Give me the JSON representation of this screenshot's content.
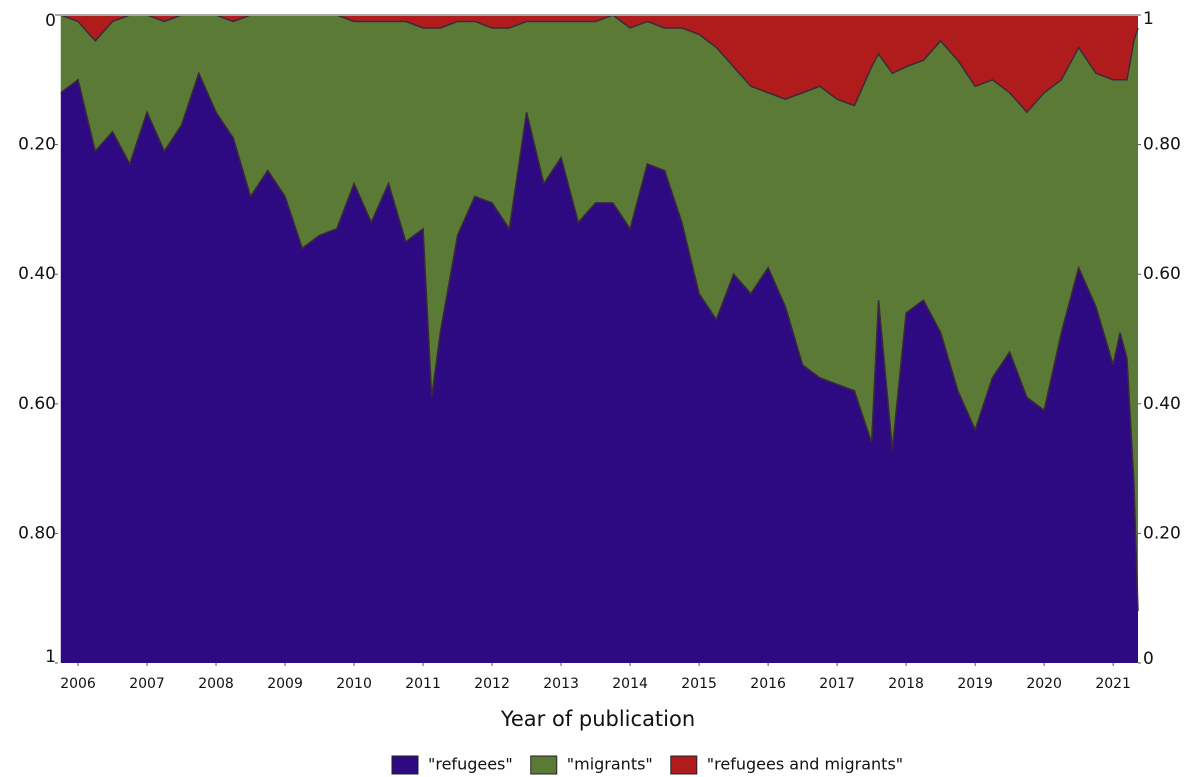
{
  "chart_data": {
    "type": "stacked_area",
    "x_label": "Year of publication",
    "x": [
      2005.75,
      2006.0,
      2006.25,
      2006.5,
      2006.75,
      2007.0,
      2007.25,
      2007.5,
      2007.75,
      2008.0,
      2008.25,
      2008.5,
      2008.75,
      2009.0,
      2009.25,
      2009.5,
      2009.75,
      2010.0,
      2010.25,
      2010.5,
      2010.75,
      2011.0,
      2011.125,
      2011.25,
      2011.5,
      2011.75,
      2012.0,
      2012.25,
      2012.5,
      2012.75,
      2013.0,
      2013.25,
      2013.5,
      2013.75,
      2014.0,
      2014.25,
      2014.5,
      2014.75,
      2015.0,
      2015.25,
      2015.5,
      2015.75,
      2016.0,
      2016.25,
      2016.5,
      2016.75,
      2017.0,
      2017.25,
      2017.5,
      2017.6,
      2017.8,
      2018.0,
      2018.25,
      2018.5,
      2018.75,
      2019.0,
      2019.25,
      2019.5,
      2019.75,
      2020.0,
      2020.25,
      2020.5,
      2020.75,
      2021.0,
      2021.1,
      2021.2,
      2021.3,
      2021.36
    ],
    "series": [
      {
        "name": "\"refugees\"",
        "color": "#2e0a82",
        "axis": "y2",
        "values": [
          0.88,
          0.9,
          0.79,
          0.82,
          0.77,
          0.85,
          0.79,
          0.83,
          0.91,
          0.85,
          0.81,
          0.72,
          0.76,
          0.72,
          0.64,
          0.66,
          0.67,
          0.74,
          0.68,
          0.74,
          0.65,
          0.67,
          0.41,
          0.51,
          0.66,
          0.72,
          0.71,
          0.67,
          0.85,
          0.74,
          0.78,
          0.68,
          0.71,
          0.71,
          0.67,
          0.77,
          0.76,
          0.68,
          0.57,
          0.53,
          0.6,
          0.57,
          0.61,
          0.55,
          0.46,
          0.44,
          0.43,
          0.42,
          0.34,
          0.56,
          0.33,
          0.54,
          0.56,
          0.51,
          0.42,
          0.36,
          0.44,
          0.48,
          0.41,
          0.39,
          0.51,
          0.61,
          0.55,
          0.46,
          0.51,
          0.47,
          0.28,
          0.08
        ]
      },
      {
        "name": "\"migrants\"",
        "color": "#5a7a35",
        "axis": "y2",
        "values": [
          0.12,
          0.09,
          0.17,
          0.17,
          0.23,
          0.15,
          0.2,
          0.17,
          0.09,
          0.15,
          0.18,
          0.28,
          0.24,
          0.28,
          0.36,
          0.34,
          0.33,
          0.25,
          0.31,
          0.25,
          0.34,
          0.31,
          0.57,
          0.47,
          0.33,
          0.27,
          0.27,
          0.31,
          0.14,
          0.25,
          0.21,
          0.31,
          0.28,
          0.29,
          0.31,
          0.22,
          0.22,
          0.3,
          0.4,
          0.42,
          0.32,
          0.32,
          0.27,
          0.32,
          0.42,
          0.45,
          0.44,
          0.44,
          0.58,
          0.38,
          0.58,
          0.38,
          0.37,
          0.45,
          0.51,
          0.53,
          0.46,
          0.4,
          0.44,
          0.49,
          0.39,
          0.34,
          0.36,
          0.44,
          0.39,
          0.43,
          0.68,
          0.9
        ]
      },
      {
        "name": "\"refugees and migrants\"",
        "color": "#b01c1c",
        "axis": "y2",
        "values": [
          0.0,
          0.01,
          0.04,
          0.01,
          0.0,
          0.0,
          0.01,
          0.0,
          0.0,
          0.0,
          0.01,
          0.0,
          0.0,
          0.0,
          0.0,
          0.0,
          0.0,
          0.01,
          0.01,
          0.01,
          0.01,
          0.02,
          0.02,
          0.02,
          0.01,
          0.01,
          0.02,
          0.02,
          0.01,
          0.01,
          0.01,
          0.01,
          0.01,
          0.0,
          0.02,
          0.01,
          0.02,
          0.02,
          0.03,
          0.05,
          0.08,
          0.11,
          0.12,
          0.13,
          0.12,
          0.11,
          0.13,
          0.14,
          0.08,
          0.06,
          0.09,
          0.08,
          0.07,
          0.04,
          0.07,
          0.11,
          0.1,
          0.12,
          0.15,
          0.12,
          0.1,
          0.05,
          0.09,
          0.1,
          0.1,
          0.1,
          0.04,
          0.02
        ]
      }
    ],
    "xlim": [
      2005.71,
      2021.36
    ],
    "xticks": [
      2006,
      2007,
      2008,
      2009,
      2010,
      2011,
      2012,
      2013,
      2014,
      2015,
      2016,
      2017,
      2018,
      2019,
      2020,
      2021
    ],
    "ylim": [
      1,
      0
    ],
    "yticks": [
      0,
      {
        "value": 0.2,
        "label": "0.20"
      },
      {
        "value": 0.4,
        "label": "0.40"
      },
      {
        "value": 0.6,
        "label": "0.60"
      },
      {
        "value": 0.8,
        "label": "0.80"
      },
      1
    ],
    "y2lim": [
      0,
      1
    ],
    "y2ticks": [
      0,
      {
        "value": 0.2,
        "label": "0.20"
      },
      {
        "value": 0.4,
        "label": "0.40"
      },
      {
        "value": 0.6,
        "label": "0.60"
      },
      {
        "value": 0.8,
        "label": "0.80"
      },
      1
    ],
    "legend": "bottom"
  }
}
